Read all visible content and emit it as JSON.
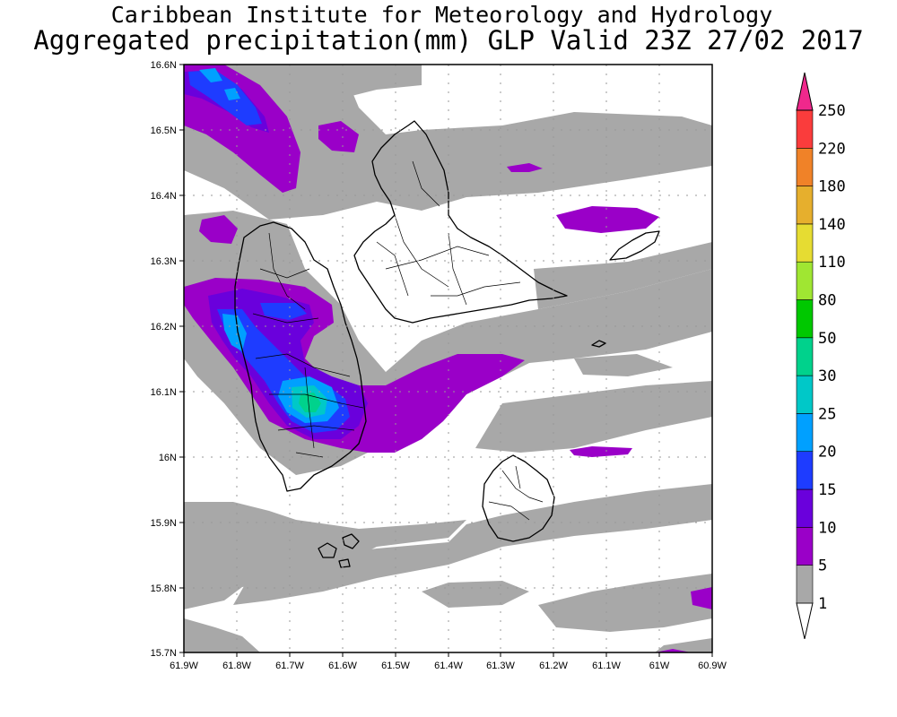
{
  "header": {
    "institute": "Caribbean Institute for Meteorology and Hydrology",
    "product": "Aggregated precipitation(mm) GLP Valid 23Z 27/02 2017"
  },
  "axes": {
    "lat_labels": [
      "15.7N",
      "15.8N",
      "15.9N",
      "16N",
      "16.1N",
      "16.2N",
      "16.3N",
      "16.4N",
      "16.5N",
      "16.6N"
    ],
    "lon_labels": [
      "61.9W",
      "61.8W",
      "61.7W",
      "61.6W",
      "61.5W",
      "61.4W",
      "61.3W",
      "61.2W",
      "61.1W",
      "61W",
      "60.9W"
    ]
  },
  "legend": {
    "levels": [
      "1",
      "5",
      "10",
      "15",
      "20",
      "25",
      "30",
      "50",
      "80",
      "110",
      "140",
      "180",
      "220",
      "250"
    ],
    "colors": [
      "#ffffff",
      "#a8a8a8",
      "#9a00c8",
      "#6a00dc",
      "#1e3cff",
      "#00a0ff",
      "#00c8c8",
      "#00d28c",
      "#00c800",
      "#a0e632",
      "#e6dc32",
      "#e6af2d",
      "#f08228",
      "#fa3c3c",
      "#f0288c"
    ]
  },
  "colors": {
    "gray_band": "#a8a8a8",
    "purple": "#9a00c8",
    "violet": "#6a00dc",
    "blue": "#1e3cff",
    "sky": "#00a0ff",
    "cyan": "#00c8c8",
    "green": "#00d28c",
    "coast": "#000000"
  }
}
